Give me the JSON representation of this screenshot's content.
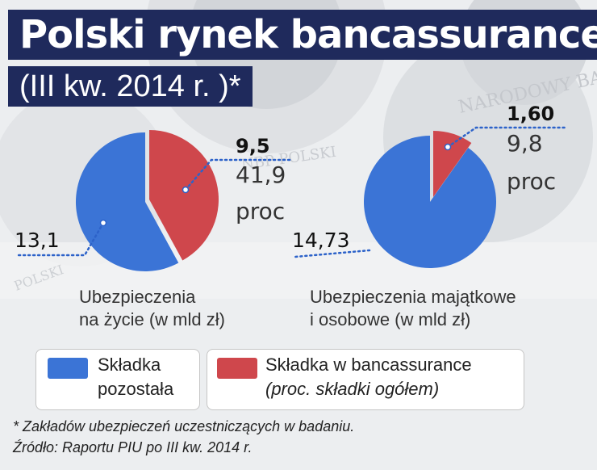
{
  "header": {
    "title": "Polski rynek bancassurance",
    "subtitle": "(III kw. 2014 r. )*"
  },
  "legend": {
    "other": {
      "label": "Składka pozostała",
      "line1": "Składka",
      "line2": "pozostała"
    },
    "bancassurance": {
      "label": "Składka w bancassurance",
      "note": "(proc. składki ogółem)"
    }
  },
  "footnotes": {
    "asterisk": "* Zakładów ubezpieczeń uczestniczących w badaniu.",
    "source": "Źródło: Raportu PIU po III kw. 2014 r."
  },
  "colors": {
    "other": "#3b74d6",
    "bancassurance": "#cf474c",
    "leader": "#2c62c9",
    "title_bg": "#1f2a5c"
  },
  "chart_data": [
    {
      "type": "pie",
      "label_line1": "Ubezpieczenia",
      "label_line2": "na życie (w mld zł)",
      "slices": [
        {
          "series": "Składka w bancassurance",
          "value": 9.5,
          "value_label": "9,5",
          "share": 41.9,
          "share_label": "41,9",
          "unit": "proc"
        },
        {
          "series": "Składka pozostała",
          "value": 13.1,
          "value_label": "13,1"
        }
      ]
    },
    {
      "type": "pie",
      "label_line1": "Ubezpieczenia majątkowe",
      "label_line2": "i osobowe (w mld zł)",
      "slices": [
        {
          "series": "Składka w bancassurance",
          "value": 1.6,
          "value_label": "1,60",
          "share": 9.8,
          "share_label": "9,8",
          "unit": "proc"
        },
        {
          "series": "Składka pozostała",
          "value": 14.73,
          "value_label": "14,73"
        }
      ]
    }
  ]
}
